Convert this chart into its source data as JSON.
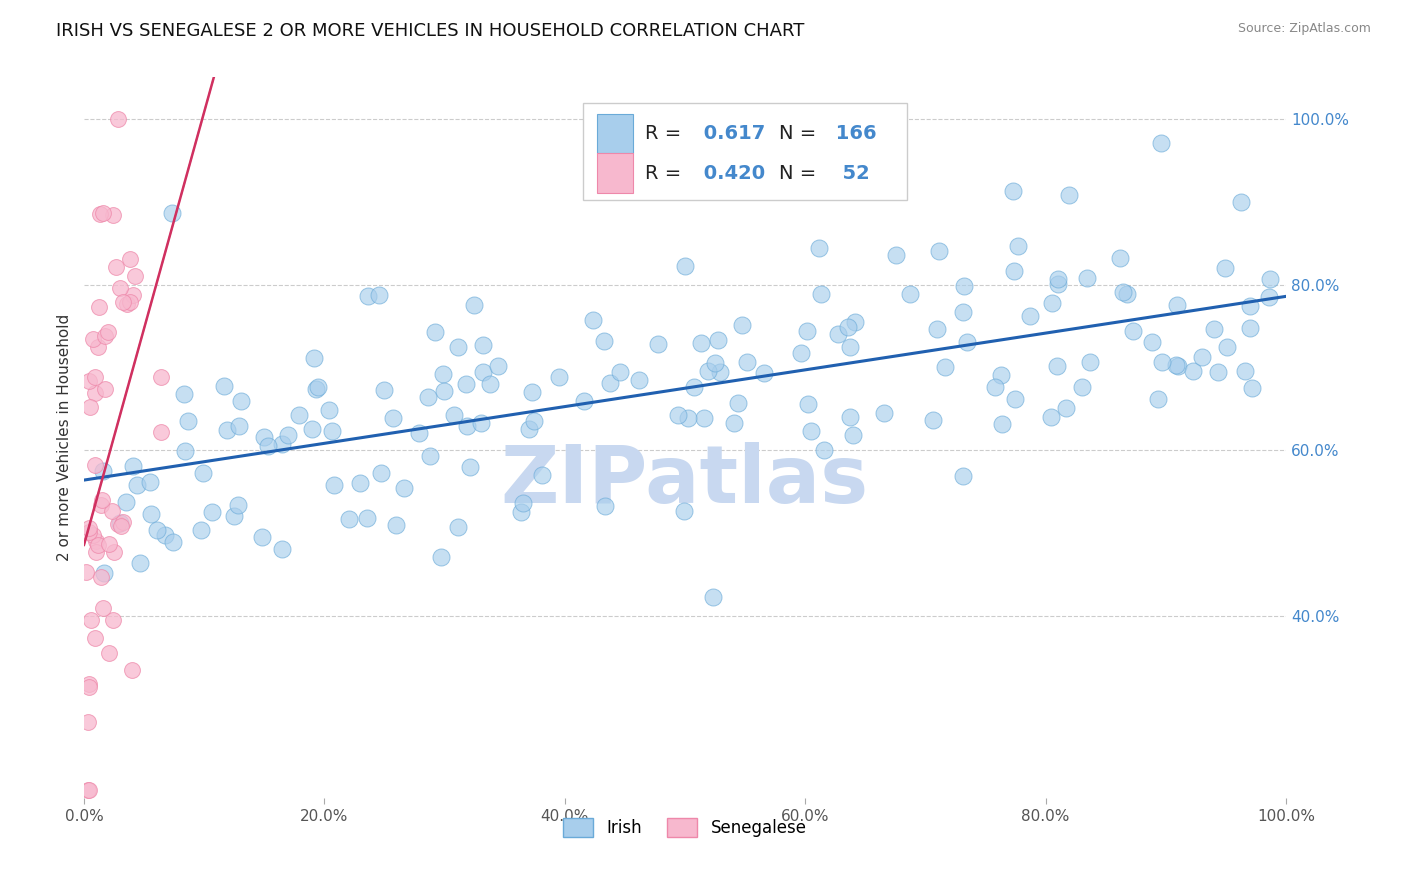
{
  "title": "IRISH VS SENEGALESE 2 OR MORE VEHICLES IN HOUSEHOLD CORRELATION CHART",
  "source_text": "Source: ZipAtlas.com",
  "ylabel": "2 or more Vehicles in Household",
  "xlim": [
    0.0,
    1.0
  ],
  "ylim": [
    0.18,
    1.05
  ],
  "xticks": [
    0.0,
    0.2,
    0.4,
    0.6,
    0.8,
    1.0
  ],
  "yticks": [
    0.4,
    0.6,
    0.8,
    1.0
  ],
  "xtick_labels": [
    "0.0%",
    "20.0%",
    "40.0%",
    "60.0%",
    "80.0%",
    "100.0%"
  ],
  "ytick_labels": [
    "40.0%",
    "60.0%",
    "80.0%",
    "100.0%"
  ],
  "irish_color": "#A8CEEC",
  "irish_edge_color": "#6AAAD8",
  "senegalese_color": "#F7B8CE",
  "senegalese_edge_color": "#EE88AA",
  "irish_line_color": "#2060B0",
  "senegalese_line_color": "#D03060",
  "watermark_color": "#C8D8F0",
  "grid_color": "#CCCCCC",
  "title_fontsize": 13,
  "axis_label_fontsize": 11,
  "tick_fontsize": 11,
  "legend_fontsize": 14,
  "irish_R": 0.617,
  "irish_N": 166,
  "senegalese_R": 0.42,
  "senegalese_N": 52,
  "irish_seed": 42,
  "senegalese_seed": 15,
  "background_color": "#FFFFFF",
  "right_ytick_color": "#4488CC"
}
